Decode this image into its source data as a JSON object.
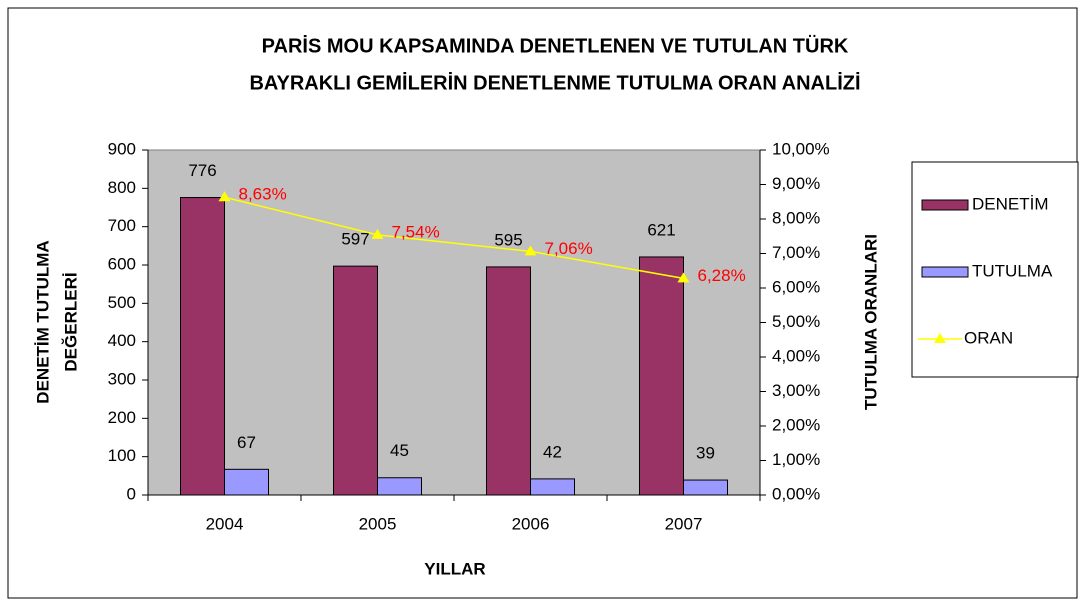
{
  "chart_data": {
    "type": "bar",
    "title": [
      "PARİS MOU KAPSAMINDA DENETLENEN VE TUTULAN TÜRK",
      "BAYRAKLI GEMİLERİN DENETLENME TUTULMA ORAN ANALİZİ"
    ],
    "xlabel": "YILLAR",
    "ylabel": [
      "DENETİM TUTULMA",
      "DEĞERLERİ"
    ],
    "y2label": "TUTULMA ORANLARI",
    "categories": [
      "2004",
      "2005",
      "2006",
      "2007"
    ],
    "series": [
      {
        "name": "DENETİM",
        "color": "#993366",
        "values": [
          776,
          597,
          595,
          621
        ]
      },
      {
        "name": "TUTULMA",
        "color": "#9999ff",
        "values": [
          67,
          45,
          42,
          39
        ]
      },
      {
        "name": "ORAN",
        "color": "#ffff00",
        "type": "line",
        "axis": "y2",
        "label_color": "#ff0000",
        "values": [
          8.63,
          7.54,
          7.06,
          6.28
        ],
        "value_labels": [
          "8,63%",
          "7,54%",
          "7,06%",
          "6,28%"
        ]
      }
    ],
    "ylim": [
      0,
      900
    ],
    "yticks": [
      0,
      100,
      200,
      300,
      400,
      500,
      600,
      700,
      800,
      900
    ],
    "y2lim": [
      0,
      10
    ],
    "y2ticks": [
      {
        "value": 0,
        "label": "0,00%"
      },
      {
        "value": 1,
        "label": "1,00%"
      },
      {
        "value": 2,
        "label": "2,00%"
      },
      {
        "value": 3,
        "label": "3,00%"
      },
      {
        "value": 4,
        "label": "4,00%"
      },
      {
        "value": 5,
        "label": "5,00%"
      },
      {
        "value": 6,
        "label": "6,00%"
      },
      {
        "value": 7,
        "label": "7,00%"
      },
      {
        "value": 8,
        "label": "8,00%"
      },
      {
        "value": 9,
        "label": "9,00%"
      },
      {
        "value": 10,
        "label": "10,00%"
      }
    ],
    "grid": false,
    "plot_background": "#c0c0c0",
    "legend": "right"
  }
}
